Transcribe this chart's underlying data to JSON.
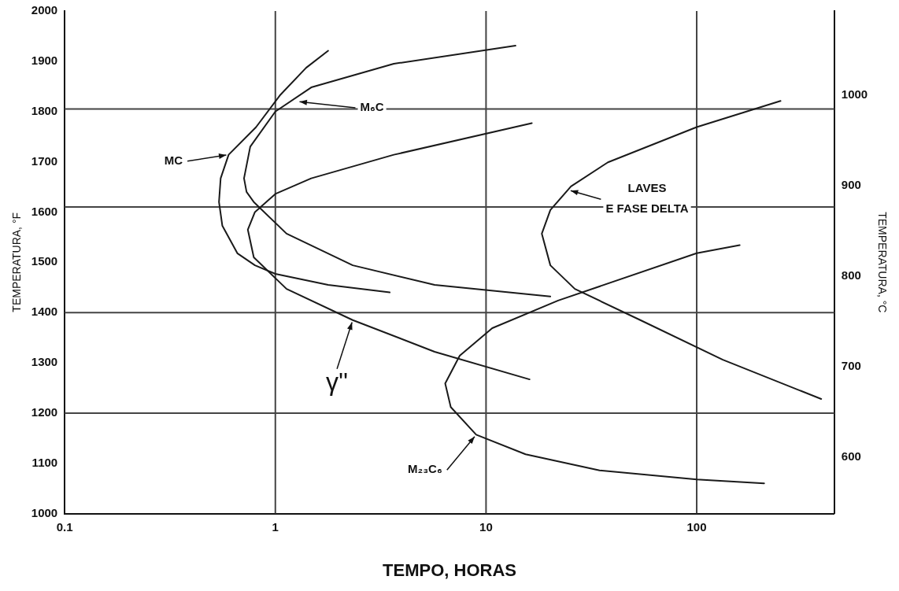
{
  "chart_data": {
    "type": "line",
    "xlabel": "TEMPO, HORAS",
    "ylabel": "TEMPERATURA, °F",
    "y2label": "TEMPERATURA, °C",
    "log": "x",
    "xlim": [
      0.1,
      450
    ],
    "xticks": [
      0.1,
      1,
      10,
      100
    ],
    "ylim": [
      1000,
      2000
    ],
    "yticks": [
      1000,
      1100,
      1200,
      1300,
      1400,
      1500,
      1600,
      1700,
      1800,
      1900,
      2000
    ],
    "y2lim": [
      538,
      1093
    ],
    "y2ticks": [
      600,
      700,
      800,
      900,
      1000
    ],
    "grid": false,
    "legend": false,
    "marker": "none",
    "line_style": "solid",
    "series": [
      {
        "color": "#1a1a1a",
        "x": [
          1.78,
          1.4,
          1.05,
          0.81,
          0.6,
          0.55,
          0.54,
          0.56,
          0.66,
          0.8,
          1.0,
          1.78,
          3.49
        ],
        "values": [
          1921,
          1887,
          1832,
          1769,
          1714,
          1667,
          1620,
          1573,
          1518,
          1494,
          1477,
          1455,
          1440
        ]
      },
      {
        "color": "#1a1a1a",
        "x": [
          13.8,
          3.65,
          1.48,
          1.0,
          0.76,
          0.71,
          0.73,
          0.79,
          1.13,
          2.33,
          5.7,
          20.2
        ],
        "values": [
          1931,
          1895,
          1848,
          1800,
          1730,
          1667,
          1640,
          1620,
          1557,
          1494,
          1455,
          1432
        ]
      },
      {
        "color": "#1a1a1a",
        "x": [
          16.5,
          3.65,
          1.48,
          1.0,
          0.8,
          0.74,
          0.79,
          1.13,
          2.33,
          5.7,
          16.1
        ],
        "values": [
          1777,
          1714,
          1667,
          1636,
          1600,
          1565,
          1510,
          1447,
          1385,
          1322,
          1267
        ]
      },
      {
        "color": "#1a1a1a",
        "x": [
          250,
          100,
          37.9,
          25.3,
          20.2,
          18.4,
          20.2,
          26.4,
          54,
          133,
          390
        ],
        "values": [
          1821,
          1769,
          1699,
          1651,
          1604,
          1557,
          1494,
          1447,
          1385,
          1306,
          1228
        ]
      },
      {
        "color": "#1a1a1a",
        "x": [
          160,
          100,
          22,
          10.7,
          7.5,
          6.4,
          6.8,
          8.98,
          15.4,
          34.6,
          100,
          209
        ],
        "values": [
          1534,
          1518,
          1424,
          1369,
          1314,
          1259,
          1212,
          1157,
          1118,
          1086,
          1068,
          1060
        ]
      }
    ],
    "ref_lines": [
      {
        "axis": "y",
        "value": 1200
      },
      {
        "axis": "y",
        "value": 1400
      },
      {
        "axis": "y",
        "value": 1610
      },
      {
        "axis": "y",
        "value": 1805
      },
      {
        "axis": "x",
        "value": 1
      },
      {
        "axis": "x",
        "value": 10
      },
      {
        "axis": "x",
        "value": 100
      }
    ],
    "annotations": [
      {
        "text": "MC",
        "x": 0.6,
        "y": 1714
      },
      {
        "text": "M₆C",
        "x": 1.27,
        "y": 1820
      },
      {
        "text": "γ''",
        "x": 2.33,
        "y": 1385
      },
      {
        "text": "LAVES\nE FASE DELTA",
        "x": 24.6,
        "y": 1644
      },
      {
        "text": "M₂₃C₆",
        "x": 8.98,
        "y": 1157
      }
    ]
  }
}
